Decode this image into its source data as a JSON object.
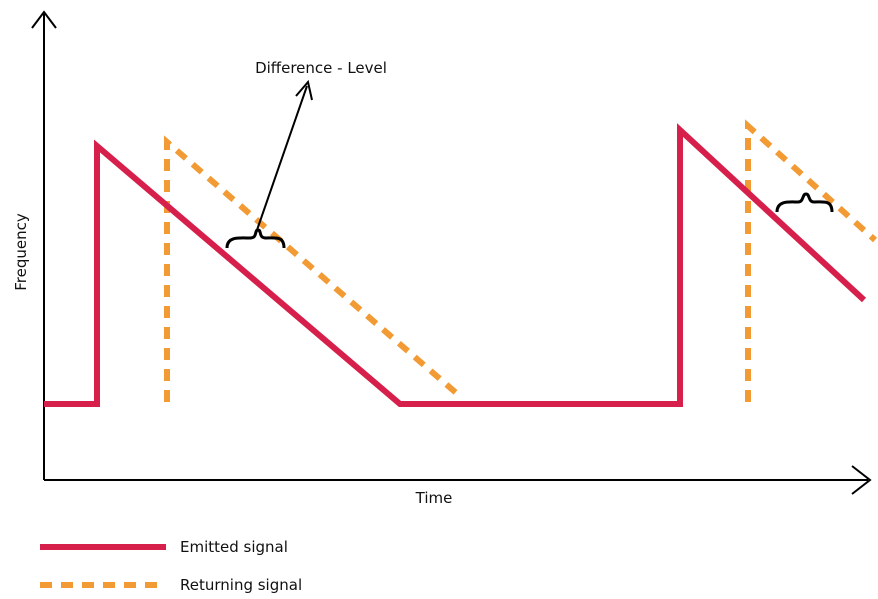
{
  "diagram": {
    "x_axis_label": "Time",
    "y_axis_label": "Frequency",
    "annotation": "Difference - Level",
    "legend": {
      "emitted": "Emitted signal",
      "returning": "Returning signal"
    },
    "colors": {
      "emitted": "#d6204b",
      "returning": "#f29a33",
      "axis": "#000000"
    }
  }
}
